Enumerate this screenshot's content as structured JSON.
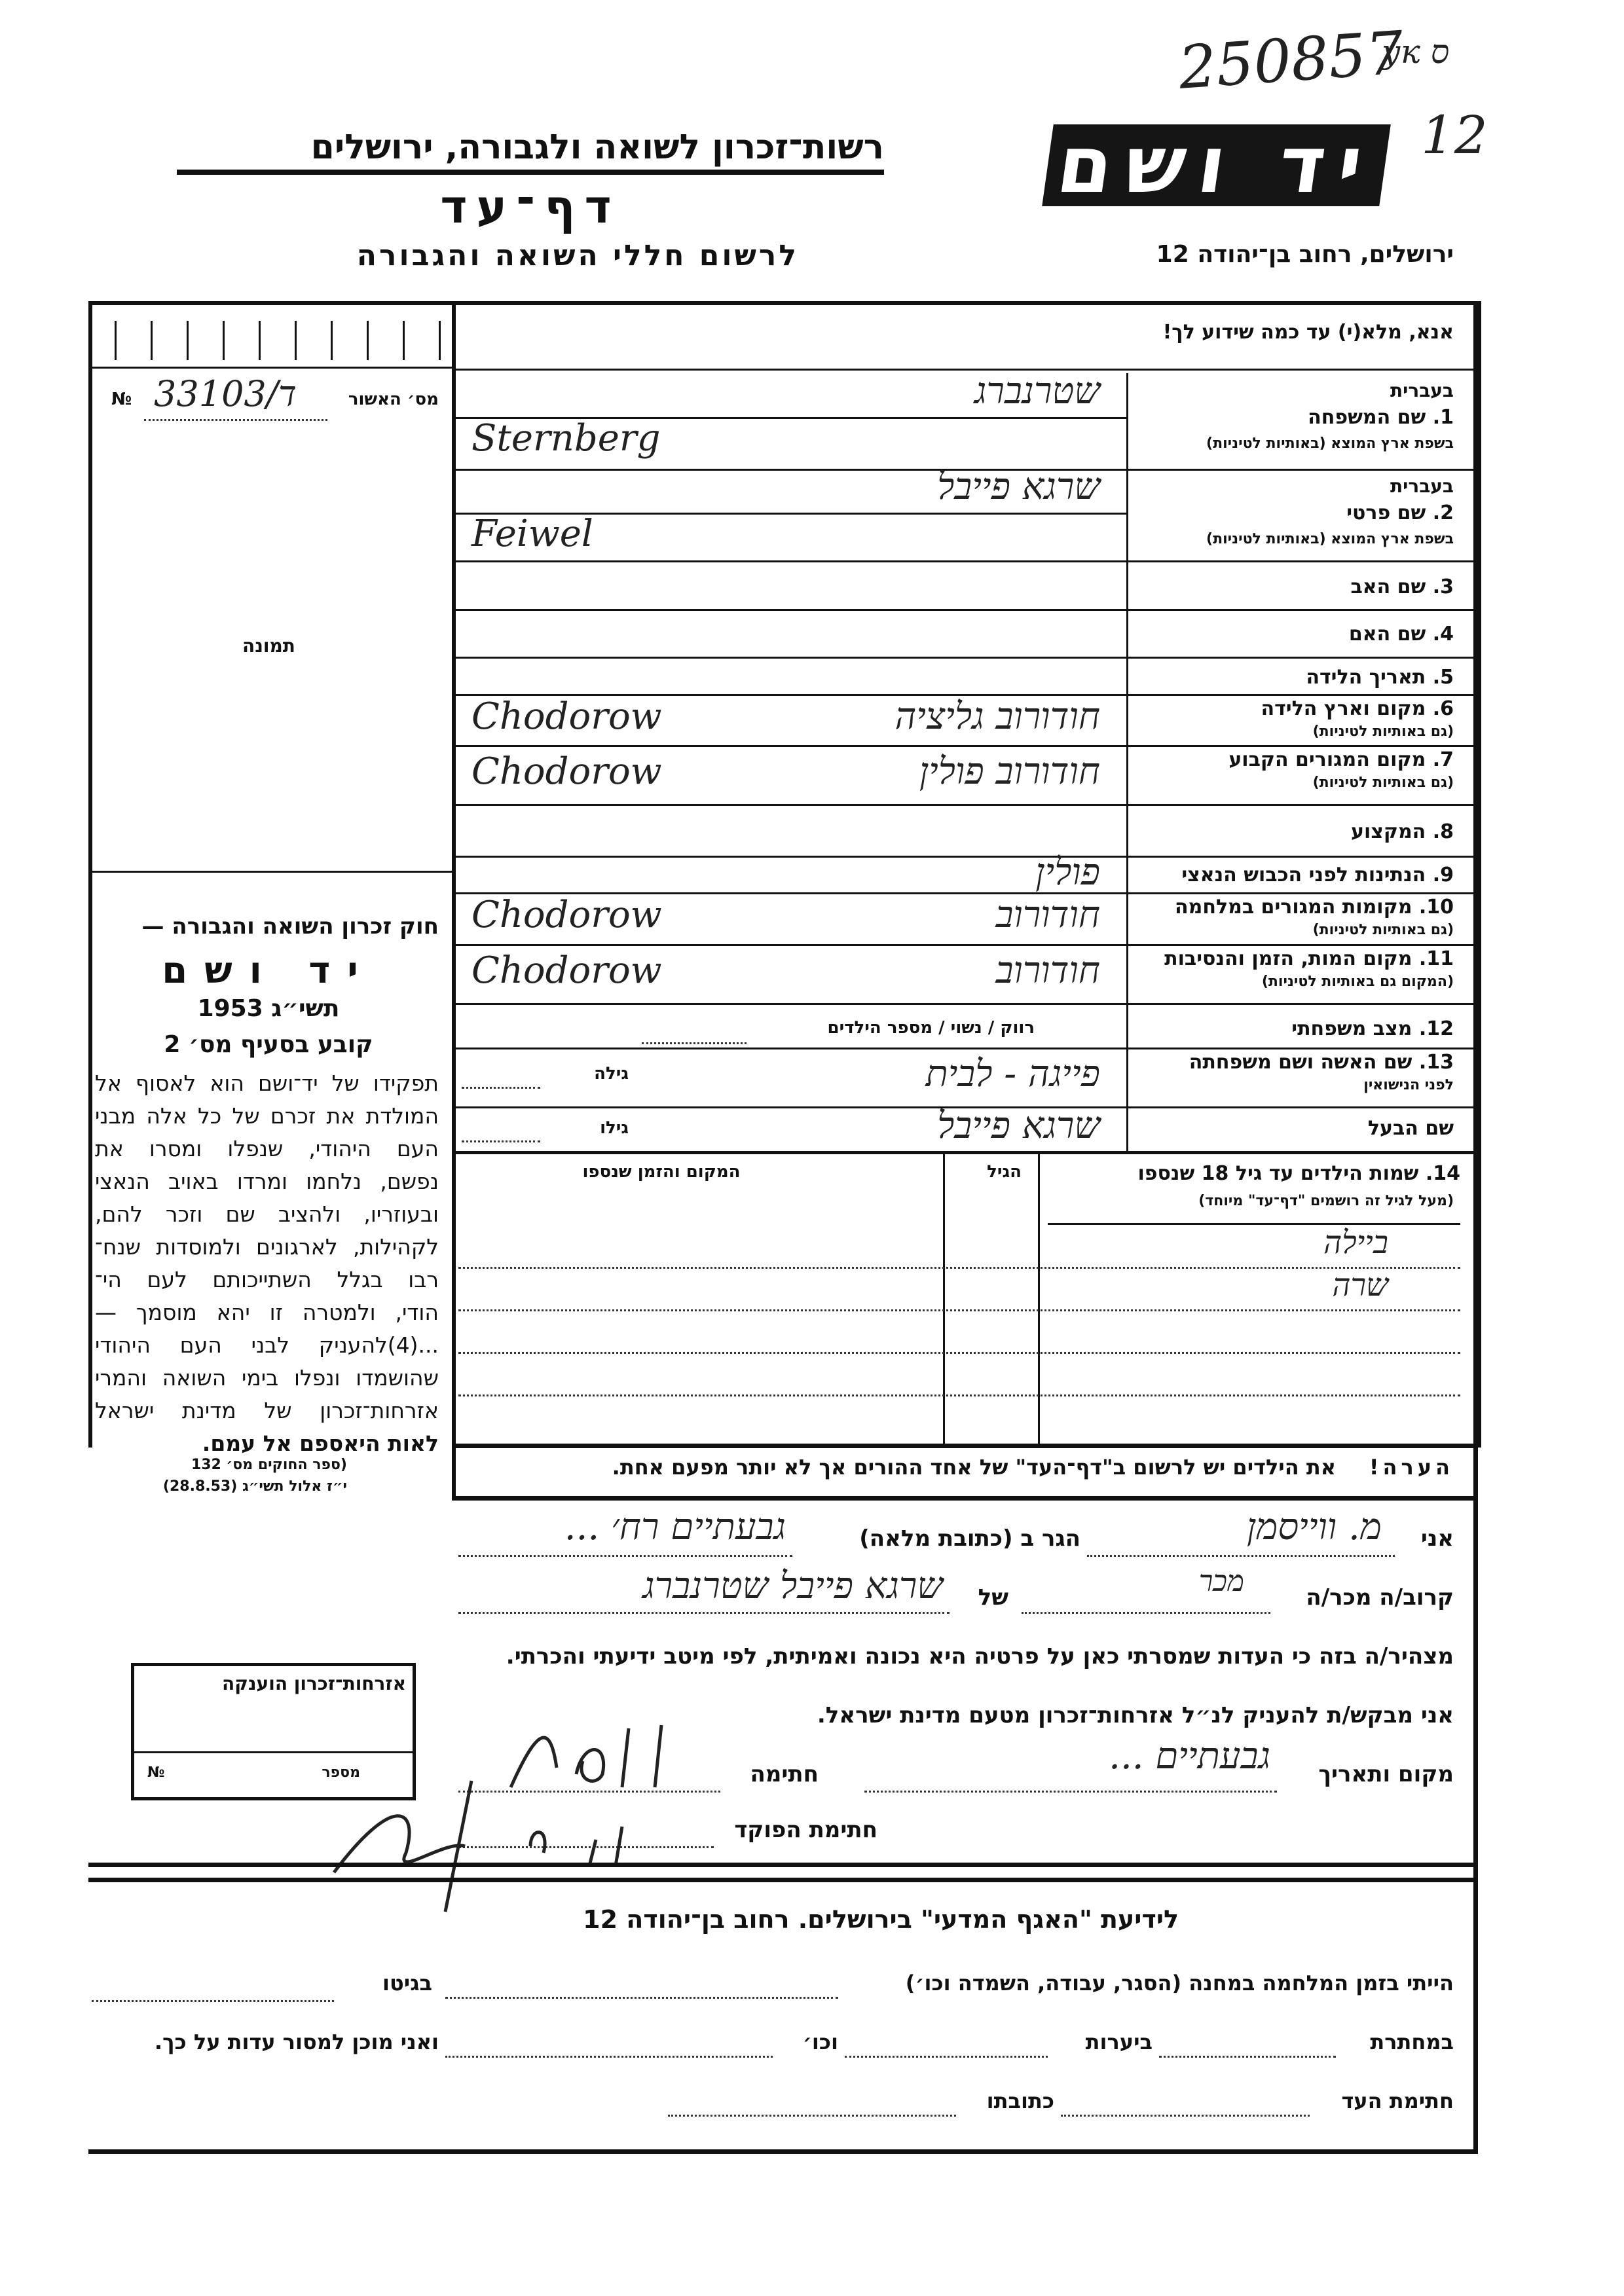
{
  "stamp": {
    "archive_number": "250857",
    "mark": "ук ס",
    "page_number": "12"
  },
  "header": {
    "authority": "רשות־זכרון לשואה ולגבורה, ירושלים",
    "form_title": "דף־עד",
    "form_subtitle": "לרשום חללי השואה והגבורה",
    "logo": "יד ושם",
    "address": "ירושלים, רחוב בן־יהודה 12"
  },
  "left": {
    "approval_label": "מס׳ האשור",
    "approval_no_sign": "№",
    "approval_number": "33103/ד",
    "photo_label": "תמונה",
    "law_title": "חוק זכרון השואה והגבורה —",
    "law_name": "יד ושם",
    "law_year": "תשי״ג 1953",
    "law_clause": "קובע בסעיף מס׳ 2",
    "law_text": [
      "תפקידו של יד־ושם הוא לאסוף אל",
      "המולדת את זכרם של כל אלה מבני",
      "העם היהודי, שנפלו ומסרו את",
      "נפשם, נלחמו ומרדו באויב הנאצי",
      "ובעוזריו, ולהציב שם וזכר להם,",
      "לקהילות, לארגונים ולמוסדות שנח־",
      "רבו בגלל השתייכותם לעם הי־",
      "הודי, ולמטרה זו יהא מוסמך —"
    ],
    "law_text2": [
      "...(4)להעניק לבני העם היהודי",
      "שהושמדו ונפלו בימי השואה והמרי",
      "אזרחות־זכרון של מדינת ישראל",
      "לאות היאספם אל עמם."
    ],
    "law_source": [
      "(ספר החוקים מס׳ 132",
      "י״ז אלול תשי״ג (28.8.53)"
    ],
    "citizenship_box": {
      "title": "אזרחות־זכרון הוענקה",
      "number_label": "מספר",
      "no_sign": "№"
    }
  },
  "form": {
    "instruction": "אנא, מלא(י) עד כמה שידוע לך!",
    "fields": [
      {
        "label": "1. שם המשפחה",
        "hebrew_tag": "בעברית",
        "sub": "בשפת ארץ המוצא (באותיות לטיניות)",
        "value_he": "שטרנברג",
        "value_lat": "Sternberg"
      },
      {
        "label": "2. שם פרטי",
        "hebrew_tag": "בעברית",
        "sub": "בשפת ארץ המוצא (באותיות לטיניות)",
        "value_he": "שרגא פייבל",
        "value_lat": "Feiwel"
      },
      {
        "label": "3. שם האב"
      },
      {
        "label": "4. שם האם"
      },
      {
        "label": "5. תאריך הלידה"
      },
      {
        "label": "6. מקום וארץ הלידה",
        "sub": "(גם באותיות לטיניות)",
        "value_he": "חודורוב גליציה",
        "value_lat": "Chodorow"
      },
      {
        "label": "7. מקום המגורים הקבוע",
        "sub": "(גם באותיות לטיניות)",
        "value_he": "חודורוב פולין",
        "value_lat": "Chodorow"
      },
      {
        "label": "8. המקצוע"
      },
      {
        "label": "9. הנתינות לפני הכבוש הנאצי",
        "value_he": "פולין"
      },
      {
        "label": "10. מקומות המגורים במלחמה",
        "sub": "(גם באותיות לטיניות)",
        "value_he": "חודורוב",
        "value_lat": "Chodorow"
      },
      {
        "label": "11. מקום המות, הזמן והנסיבות",
        "sub": "(המקום גם באותיות לטיניות)",
        "value_he": "חודורוב",
        "value_lat": "Chodorow"
      },
      {
        "label": "12. מצב משפחתי",
        "options": "רווק / נשוי / מספר הילדים"
      },
      {
        "label": "13. שם האשה ושם משפחתה",
        "sub": "לפני הנישואין",
        "age_label": "גילה",
        "value_he": "פייגה - לבית"
      },
      {
        "label": "שם הבעל",
        "age_label": "גילו",
        "value_he": "שרגא פייבל"
      }
    ],
    "children": {
      "label": "14. שמות הילדים עד גיל 18 שנספו",
      "sub": "(מעל לגיל זה רושמים \"דף־עד\" מיוחד)",
      "age_header": "הגיל",
      "place_header": "המקום והזמן שנספו",
      "names": [
        "ביילה",
        "שרה"
      ]
    },
    "note_label": "הערה!",
    "note_text": "את הילדים יש לרשום ב\"דף־העד\" של אחד ההורים אך לא יותר מפעם אחת."
  },
  "declaration": {
    "i_label": "אני",
    "i_value": "מ. ווייסמן",
    "lives_label": "הגר ב (כתובת מלאה)",
    "address_value": "גבעתיים רח׳ ...",
    "relation_label": "קרוב/ה מכר/ה",
    "relation_value": "מכר",
    "of_label": "של",
    "of_value": "שרגא פייבל שטרנברג",
    "declares": "מצהיר/ה בזה כי העדות שמסרתי כאן על פרטיה היא נכונה ואמיתית, לפי מיטב ידיעתי והכרתי.",
    "requests": "אני מבקש/ת להעניק לנ״ל אזרחות־זכרון מטעם מדינת ישראל.",
    "place_date_label": "מקום ותאריך",
    "place_date_value": "גבעתיים ...",
    "signature_label": "חתימה",
    "officer_signature_label": "חתימת הפוקד"
  },
  "bottom": {
    "notice": "לידיעת \"האגף המדעי\" בירושלים. רחוב בן־יהודה 12",
    "line1_a": "הייתי בזמן המלחמה במחנה (הסגר, עבודה, השמדה וכו׳)",
    "line1_b": "בגיטו",
    "line2_a": "במחתרת",
    "line2_b": "ביערות",
    "line2_c": "וכו׳",
    "line2_d": "ואני מוכן למסור עדות על כך.",
    "line3_a": "חתימת העד",
    "line3_b": "כתובתו"
  }
}
